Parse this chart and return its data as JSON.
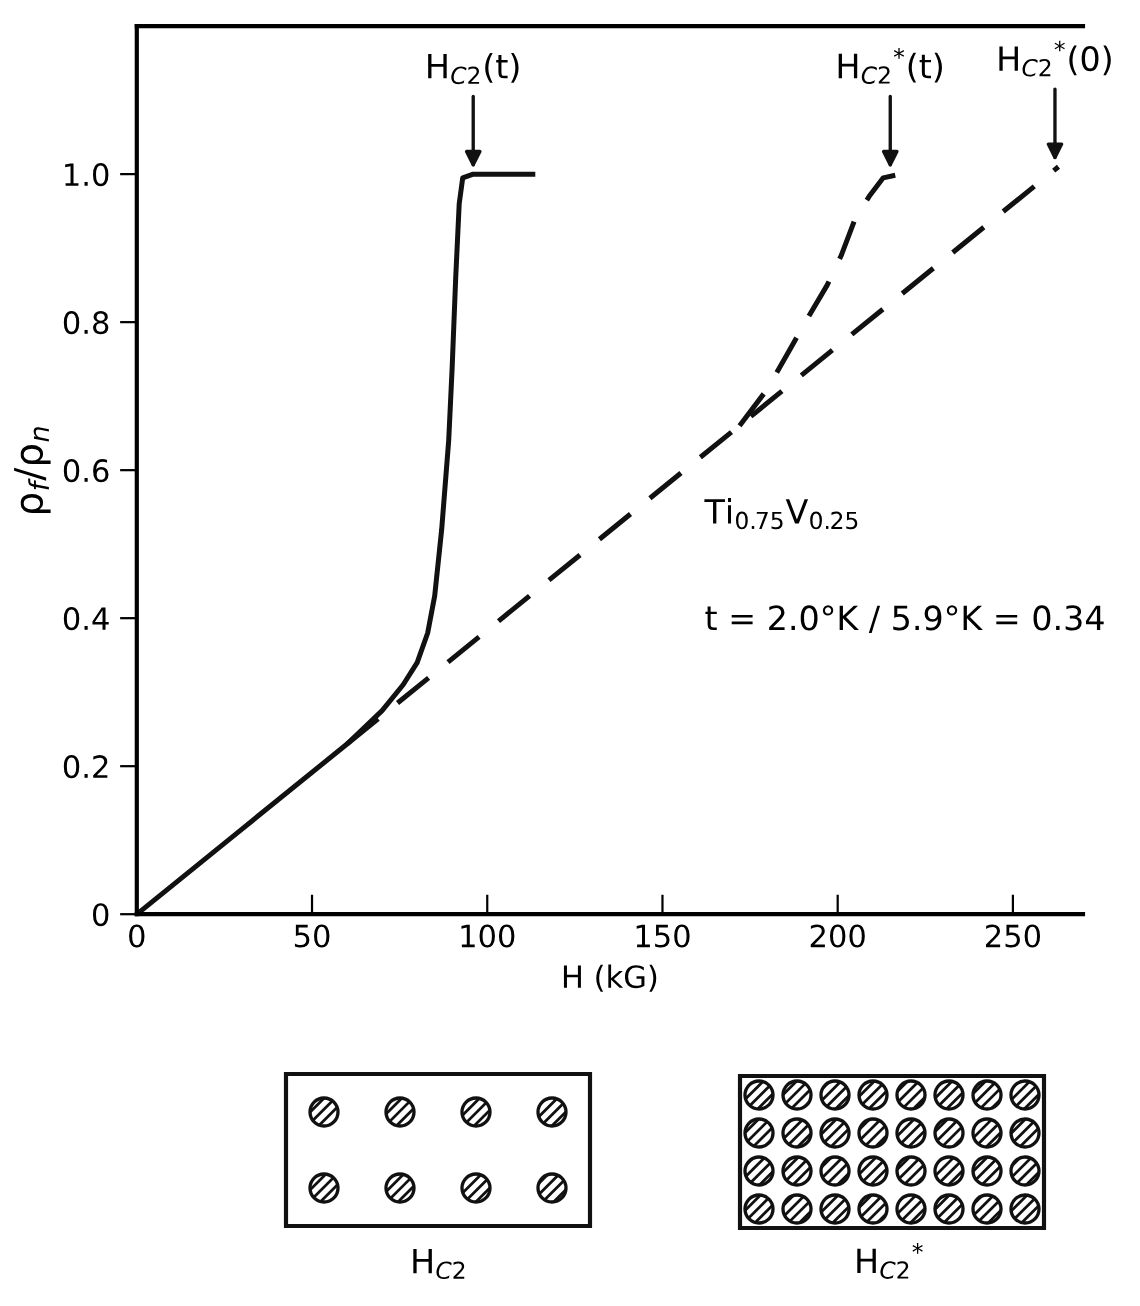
{
  "chart_data": {
    "type": "line",
    "xlabel": "H (kG)",
    "ylabel": "ρ$_{f}$/ρ$_{n}$",
    "xlim": [
      0,
      270
    ],
    "ylim": [
      0,
      1.2
    ],
    "xticks": [
      0,
      50,
      100,
      150,
      200,
      250
    ],
    "yticks": [
      0,
      0.2,
      0.4,
      0.6,
      0.8,
      {
        "value": 1.0,
        "label": "1.0"
      }
    ],
    "grid": false,
    "legend": false,
    "marker": "none",
    "series": [
      {
        "color": "#111111",
        "line_style": "solid",
        "x": [
          0,
          30,
          60,
          70,
          76,
          80,
          83,
          85,
          87,
          89,
          90,
          91,
          92,
          93,
          96,
          105,
          113
        ],
        "values": [
          0,
          0.115,
          0.23,
          0.275,
          0.31,
          0.34,
          0.38,
          0.43,
          0.52,
          0.64,
          0.74,
          0.86,
          0.96,
          0.995,
          1.0,
          1.0,
          1.0
        ]
      },
      {
        "color": "#111111",
        "line_style": "dashed",
        "x": [
          60,
          263
        ],
        "values": [
          0.23,
          1.01
        ]
      },
      {
        "color": "#111111",
        "line_style": "dashed",
        "x": [
          172,
          180,
          186,
          192,
          197,
          201,
          205,
          209,
          213,
          218
        ],
        "values": [
          0.66,
          0.71,
          0.76,
          0.81,
          0.85,
          0.89,
          0.94,
          0.97,
          0.995,
          1.0
        ]
      }
    ],
    "annotations": [
      {
        "text": "H$_{C2}$(t)",
        "x": 96,
        "y": 1.0
      },
      {
        "text": "H$_{C2}$$^{*}$(t)",
        "x": 215,
        "y": 1.0
      },
      {
        "text": "H$_{C2}$$^{*}$(0)",
        "x": 262,
        "y": 1.01
      },
      "Ti$_{0.75}$V$_{0.25}$",
      "t = 2.0°K / 5.9°K = 0.34",
      "H$_{C2}$",
      "H$_{C2}$$^{*}$"
    ]
  }
}
